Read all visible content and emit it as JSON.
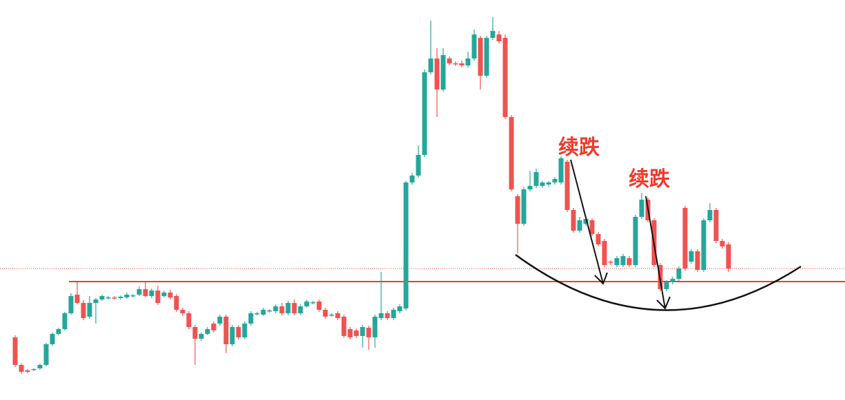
{
  "chart_data": {
    "type": "candlestick",
    "up_color": "#26a69a",
    "down_color": "#ef5350",
    "ylim": [
      0,
      581
    ],
    "support_level": 172,
    "reference_level": 191,
    "level_color": "#ef3b2c",
    "annotations": [
      "续跌",
      "续跌"
    ],
    "ohlc": [
      [
        91,
        94,
        48,
        51
      ],
      [
        51,
        53,
        38,
        41
      ],
      [
        43,
        45,
        39,
        41
      ],
      [
        44,
        46,
        42,
        45
      ],
      [
        46,
        53,
        44,
        51
      ],
      [
        51,
        83,
        49,
        81
      ],
      [
        81,
        98,
        79,
        96
      ],
      [
        96,
        105,
        94,
        103
      ],
      [
        103,
        128,
        101,
        126
      ],
      [
        126,
        155,
        124,
        151
      ],
      [
        153,
        171,
        139,
        141
      ],
      [
        141,
        145,
        116,
        119
      ],
      [
        121,
        151,
        118,
        141
      ],
      [
        141,
        148,
        111,
        146
      ],
      [
        146,
        153,
        144,
        151
      ],
      [
        148,
        151,
        146,
        149
      ],
      [
        149,
        151,
        146,
        148
      ],
      [
        148,
        152,
        146,
        150
      ],
      [
        149,
        156,
        147,
        153
      ],
      [
        151,
        154,
        149,
        152
      ],
      [
        153,
        165,
        151,
        161
      ],
      [
        161,
        171,
        149,
        151
      ],
      [
        151,
        162,
        148,
        159
      ],
      [
        159,
        166,
        138,
        141
      ],
      [
        151,
        159,
        149,
        156
      ],
      [
        156,
        160,
        146,
        149
      ],
      [
        151,
        154,
        128,
        131
      ],
      [
        131,
        134,
        122,
        126
      ],
      [
        126,
        129,
        103,
        106
      ],
      [
        106,
        109,
        51,
        89
      ],
      [
        89,
        98,
        86,
        96
      ],
      [
        96,
        106,
        94,
        103
      ],
      [
        111,
        114,
        98,
        101
      ],
      [
        111,
        124,
        108,
        121
      ],
      [
        121,
        124,
        68,
        81
      ],
      [
        81,
        109,
        78,
        106
      ],
      [
        106,
        109,
        88,
        91
      ],
      [
        91,
        114,
        88,
        111
      ],
      [
        111,
        129,
        108,
        126
      ],
      [
        125,
        128,
        123,
        126
      ],
      [
        124,
        134,
        122,
        131
      ],
      [
        129,
        132,
        127,
        130
      ],
      [
        129,
        139,
        126,
        136
      ],
      [
        136,
        141,
        123,
        126
      ],
      [
        126,
        144,
        123,
        141
      ],
      [
        141,
        146,
        123,
        126
      ],
      [
        126,
        139,
        123,
        136
      ],
      [
        136,
        146,
        134,
        143
      ],
      [
        141,
        144,
        139,
        142
      ],
      [
        143,
        146,
        128,
        131
      ],
      [
        131,
        134,
        118,
        121
      ],
      [
        123,
        126,
        121,
        124
      ],
      [
        126,
        129,
        116,
        119
      ],
      [
        121,
        124,
        90,
        93
      ],
      [
        103,
        106,
        88,
        91
      ],
      [
        101,
        104,
        90,
        93
      ],
      [
        93,
        109,
        76,
        106
      ],
      [
        105,
        108,
        73,
        91
      ],
      [
        91,
        124,
        76,
        121
      ],
      [
        119,
        186,
        116,
        126
      ],
      [
        126,
        129,
        116,
        119
      ],
      [
        119,
        134,
        116,
        131
      ],
      [
        129,
        139,
        126,
        136
      ],
      [
        133,
        318,
        130,
        316
      ],
      [
        316,
        330,
        313,
        326
      ],
      [
        326,
        370,
        323,
        356
      ],
      [
        356,
        480,
        353,
        476
      ],
      [
        476,
        551,
        473,
        496
      ],
      [
        496,
        511,
        411,
        451
      ],
      [
        451,
        511,
        448,
        501
      ],
      [
        496,
        499,
        486,
        489
      ],
      [
        489,
        492,
        485,
        488
      ],
      [
        489,
        493,
        483,
        486
      ],
      [
        486,
        506,
        483,
        496
      ],
      [
        496,
        538,
        493,
        531
      ],
      [
        526,
        529,
        451,
        471
      ],
      [
        471,
        529,
        468,
        526
      ],
      [
        526,
        556,
        523,
        536
      ],
      [
        531,
        536,
        518,
        521
      ],
      [
        526,
        531,
        408,
        411
      ],
      [
        411,
        414,
        303,
        306
      ],
      [
        296,
        299,
        213,
        256
      ],
      [
        256,
        309,
        253,
        306
      ],
      [
        306,
        333,
        303,
        311
      ],
      [
        311,
        336,
        308,
        331
      ],
      [
        311,
        318,
        308,
        316
      ],
      [
        313,
        318,
        310,
        316
      ],
      [
        316,
        324,
        313,
        321
      ],
      [
        316,
        354,
        313,
        351
      ],
      [
        346,
        349,
        273,
        276
      ],
      [
        276,
        279,
        243,
        246
      ],
      [
        246,
        266,
        243,
        261
      ],
      [
        256,
        266,
        253,
        263
      ],
      [
        261,
        264,
        238,
        241
      ],
      [
        241,
        244,
        223,
        226
      ],
      [
        231,
        234,
        193,
        196
      ],
      [
        201,
        203,
        196,
        200
      ],
      [
        196,
        209,
        193,
        206
      ],
      [
        196,
        212,
        193,
        209
      ],
      [
        206,
        209,
        193,
        196
      ],
      [
        196,
        269,
        193,
        266
      ],
      [
        266,
        301,
        263,
        291
      ],
      [
        291,
        294,
        258,
        261
      ],
      [
        261,
        264,
        193,
        196
      ],
      [
        196,
        199,
        158,
        161
      ],
      [
        161,
        174,
        158,
        171
      ],
      [
        171,
        179,
        168,
        176
      ],
      [
        176,
        194,
        173,
        191
      ],
      [
        279,
        282,
        188,
        191
      ],
      [
        201,
        219,
        198,
        216
      ],
      [
        216,
        219,
        186,
        189
      ],
      [
        189,
        264,
        186,
        261
      ],
      [
        261,
        286,
        258,
        276
      ],
      [
        276,
        279,
        228,
        231
      ],
      [
        231,
        234,
        220,
        223
      ],
      [
        226,
        229,
        186,
        191
      ]
    ]
  }
}
